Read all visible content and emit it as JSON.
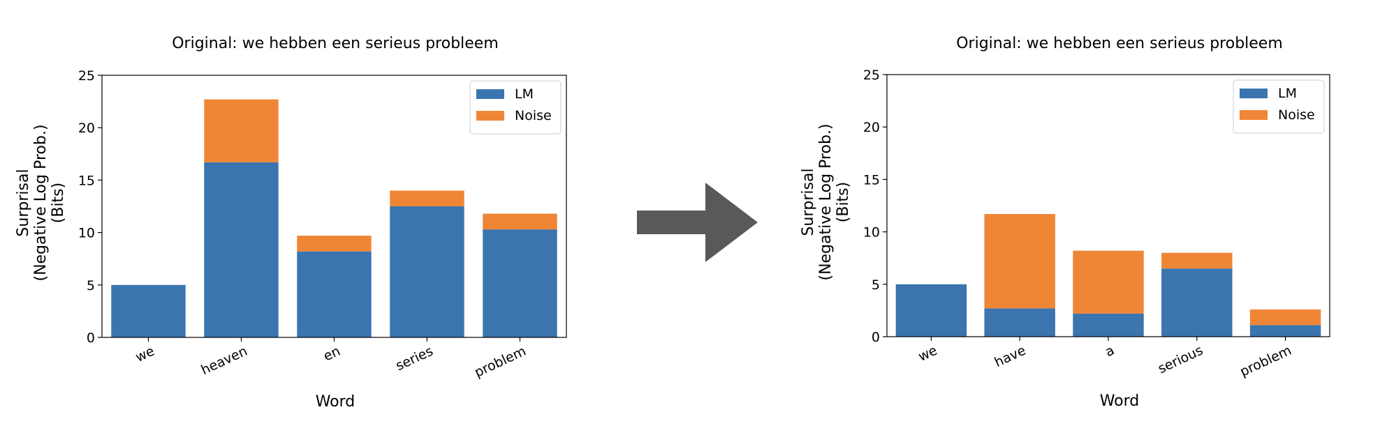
{
  "arrow": {
    "icon": "right-arrow-icon",
    "color": "#595959"
  },
  "colors": {
    "LM": "#3a75af",
    "Noise": "#ef8636"
  },
  "chart_data": [
    {
      "type": "bar",
      "stacked": true,
      "title": "Original: we hebben een serieus probleem",
      "xlabel": "Word",
      "ylabel_lines": [
        "Surprisal",
        "(Negative Log Prob.)",
        "(Bits)"
      ],
      "ylim": [
        0,
        25
      ],
      "yticks": [
        "0",
        "5",
        "10",
        "15",
        "20",
        "25"
      ],
      "categories": [
        "we",
        "heaven",
        "en",
        "series",
        "problem"
      ],
      "series": [
        {
          "name": "LM",
          "values": [
            5.0,
            16.7,
            8.2,
            12.5,
            10.3
          ]
        },
        {
          "name": "Noise",
          "values": [
            0.0,
            6.0,
            1.5,
            1.5,
            1.5
          ]
        }
      ],
      "legend": "top-right",
      "grid": false
    },
    {
      "type": "bar",
      "stacked": true,
      "title": "Original: we hebben een serieus probleem",
      "xlabel": "Word",
      "ylabel_lines": [
        "Surprisal",
        "(Negative Log Prob.)",
        "(Bits)"
      ],
      "ylim": [
        0,
        25
      ],
      "yticks": [
        "0",
        "5",
        "10",
        "15",
        "20",
        "25"
      ],
      "categories": [
        "we",
        "have",
        "a",
        "serious",
        "problem"
      ],
      "series": [
        {
          "name": "LM",
          "values": [
            5.0,
            2.7,
            2.2,
            6.5,
            1.1
          ]
        },
        {
          "name": "Noise",
          "values": [
            0.0,
            9.0,
            6.0,
            1.5,
            1.5
          ]
        }
      ],
      "legend": "top-right",
      "grid": false
    }
  ]
}
